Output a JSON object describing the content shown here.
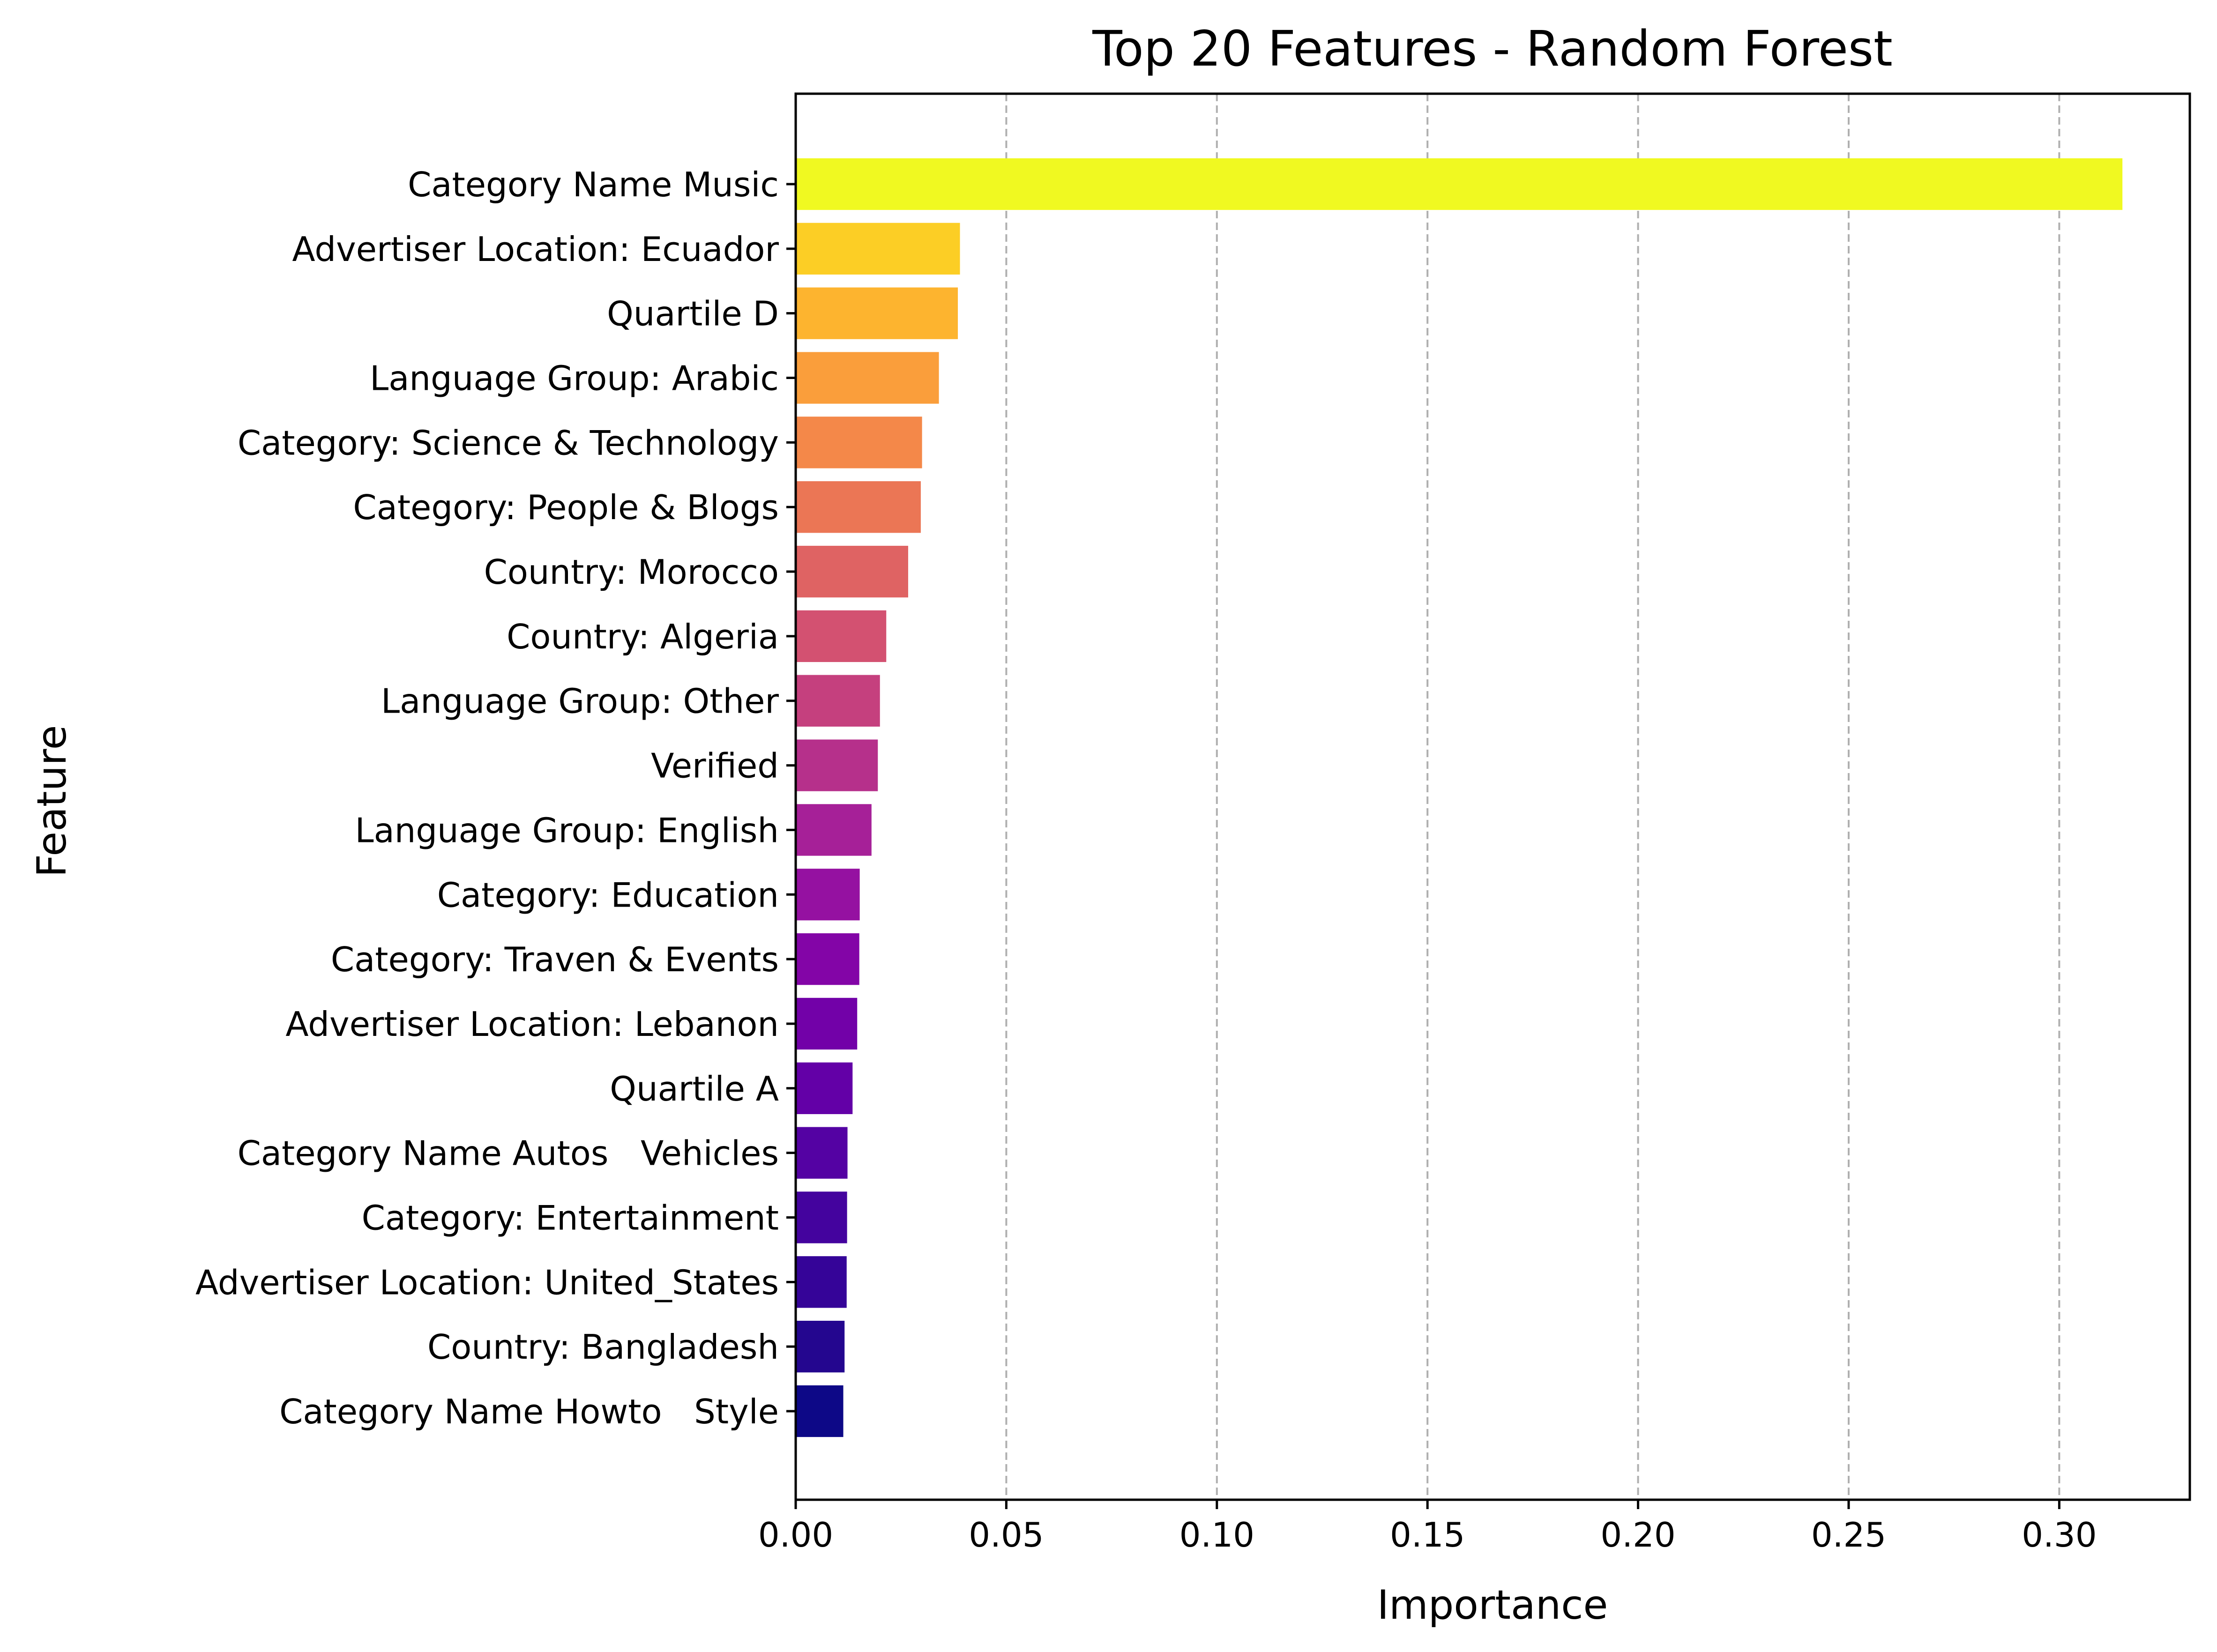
{
  "chart_data": {
    "type": "bar",
    "orientation": "horizontal",
    "title": "Top 20 Features - Random Forest",
    "xlabel": "Importance",
    "ylabel": "Feature",
    "xlim": [
      0,
      0.331
    ],
    "xticks": [
      0.0,
      0.05,
      0.1,
      0.15,
      0.2,
      0.25,
      0.3
    ],
    "xtick_labels": [
      "0.00",
      "0.05",
      "0.10",
      "0.15",
      "0.20",
      "0.25",
      "0.30"
    ],
    "grid": "x-dashed",
    "colormap": "plasma",
    "categories": [
      "Category Name Music",
      "Advertiser Location: Ecuador",
      "Quartile D",
      "Language Group: Arabic",
      "Category: Science & Technology",
      "Category: People & Blogs",
      "Country: Morocco",
      "Country: Algeria",
      "Language Group: Other",
      "Verified",
      "Language Group: English",
      "Category: Education",
      "Category: Traven & Events",
      "Advertiser Location: Lebanon",
      "Quartile A",
      "Category Name Autos   Vehicles",
      "Category: Entertainment",
      "Advertiser Location: United_States",
      "Country: Bangladesh",
      "Category Name Howto   Style"
    ],
    "values": [
      0.315,
      0.039,
      0.0385,
      0.034,
      0.03,
      0.0297,
      0.0267,
      0.0215,
      0.02,
      0.0195,
      0.018,
      0.0152,
      0.0151,
      0.0146,
      0.0135,
      0.0123,
      0.0122,
      0.0121,
      0.0116,
      0.0113
    ],
    "colors": [
      "#f0f921",
      "#fcce25",
      "#fdb42f",
      "#fa9e3b",
      "#f48849",
      "#eb7655",
      "#df6363",
      "#d35171",
      "#c5407e",
      "#b6308b",
      "#a62098",
      "#9511a1",
      "#8305a7",
      "#7201a8",
      "#6300a7",
      "#5402a3",
      "#44039e",
      "#350498",
      "#24068f",
      "#0d0887"
    ]
  }
}
